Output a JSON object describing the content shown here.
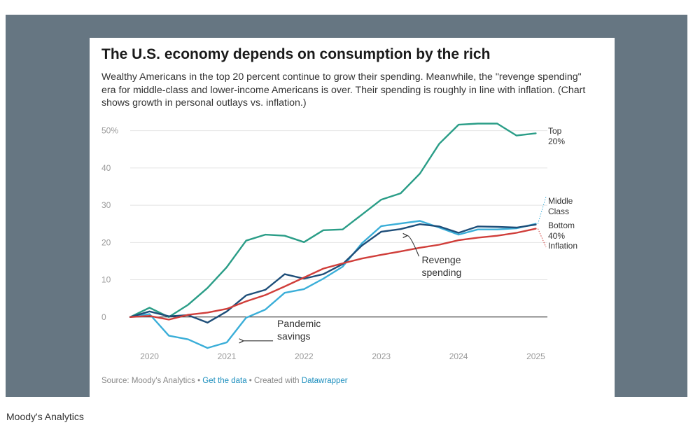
{
  "chart_data": {
    "type": "line",
    "title": "The U.S. economy depends on consumption by the rich",
    "subtitle": "Wealthy Americans in the top 20 percent continue to grow their spending. Meanwhile, the \"revenge spending\" era for middle-class and lower-income Americans is over. Their spending is roughly in line with inflation. (Chart shows growth in personal outlays vs. inflation.)",
    "xlabel": "",
    "ylabel": "",
    "xlim": [
      2019.75,
      2025.15
    ],
    "ylim": [
      -10,
      52
    ],
    "y_ticks": [
      0,
      10,
      20,
      30,
      40,
      50
    ],
    "y_tick_labels": [
      "0",
      "10",
      "20",
      "30",
      "40",
      "50%"
    ],
    "x_ticks": [
      2020,
      2021,
      2022,
      2023,
      2024,
      2025
    ],
    "x_tick_labels": [
      "2020",
      "2021",
      "2022",
      "2023",
      "2024",
      "2025"
    ],
    "x": [
      2019.75,
      2020.0,
      2020.25,
      2020.5,
      2020.75,
      2021.0,
      2021.25,
      2021.5,
      2021.75,
      2022.0,
      2022.25,
      2022.5,
      2022.75,
      2023.0,
      2023.25,
      2023.5,
      2023.75,
      2024.0,
      2024.25,
      2024.5,
      2024.75,
      2025.0
    ],
    "series": [
      {
        "name": "Top 20%",
        "label_lines": [
          "Top",
          "20%"
        ],
        "color": "#2a9d87",
        "values": [
          0,
          2.5,
          0,
          3.3,
          7.8,
          13.4,
          20.5,
          22.1,
          21.8,
          20.1,
          23.3,
          23.5,
          27.5,
          31.5,
          33.2,
          38.5,
          46.5,
          51.6,
          51.9,
          51.9,
          48.7,
          49.3
        ]
      },
      {
        "name": "Middle Class",
        "label_lines": [
          "Middle",
          "Class"
        ],
        "color": "#3aaed8",
        "values": [
          0,
          0.8,
          -5.0,
          -6.0,
          -8.3,
          -6.8,
          -0.2,
          2.0,
          6.5,
          7.5,
          10.3,
          13.5,
          19.8,
          24.4,
          25.1,
          25.8,
          24.0,
          22.1,
          23.5,
          23.5,
          23.8,
          25.0
        ]
      },
      {
        "name": "Bottom 40%",
        "label_lines": [
          "Bottom",
          "40%"
        ],
        "color": "#1e4e79",
        "values": [
          0,
          1.5,
          0.2,
          0.5,
          -1.5,
          1.5,
          5.8,
          7.3,
          11.5,
          10.3,
          11.5,
          14.2,
          19.2,
          22.9,
          23.6,
          24.9,
          24.3,
          22.6,
          24.3,
          24.2,
          24.0,
          24.8
        ]
      },
      {
        "name": "Inflation",
        "label_lines": [
          "Inflation"
        ],
        "color": "#d03e3a",
        "values": [
          0,
          0.3,
          -0.7,
          0.6,
          1.2,
          2.2,
          4.2,
          5.9,
          8.2,
          10.6,
          13.0,
          14.4,
          15.7,
          16.7,
          17.6,
          18.6,
          19.4,
          20.6,
          21.3,
          21.8,
          22.6,
          23.7
        ]
      }
    ],
    "annotations": [
      {
        "lines": [
          "Revenge",
          "spending"
        ],
        "x": 2023.65,
        "y": 14.4,
        "arrow_to": [
          2023.3,
          22.6
        ]
      },
      {
        "lines": [
          "Pandemic",
          "savings"
        ],
        "x": 2021.78,
        "y": -2.7,
        "arrow_to": [
          2021.18,
          -6.4
        ]
      }
    ]
  },
  "footer": {
    "source": "Source: Moody's Analytics",
    "sep1": " • ",
    "get_data": "Get the data",
    "sep2": " • Created with ",
    "datawrapper": "Datawrapper"
  },
  "caption": "Moody's Analytics"
}
